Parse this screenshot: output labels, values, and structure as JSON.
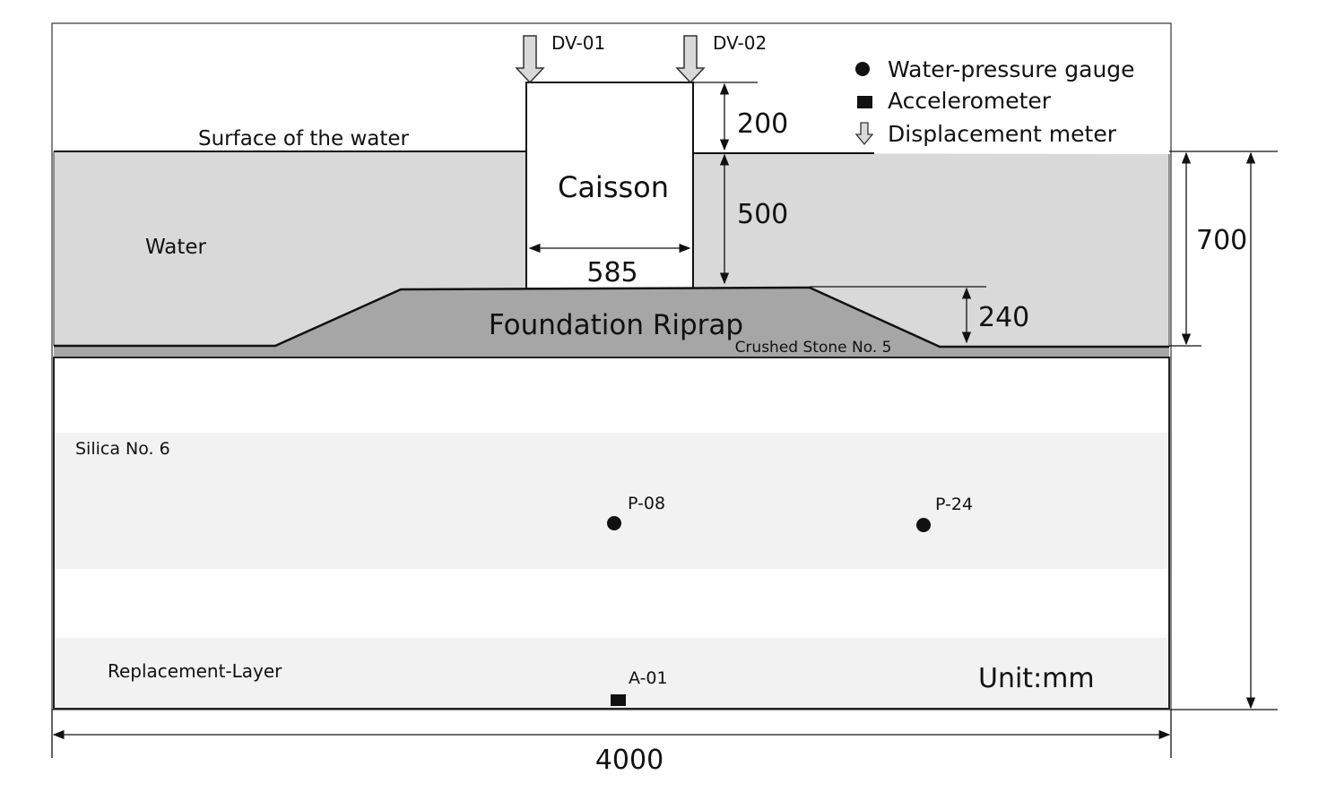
{
  "legend": {
    "water_pressure_gauge": "Water-pressure gauge",
    "accelerometer": "Accelerometer",
    "displacement_meter": "Displacement meter"
  },
  "labels": {
    "surface": "Surface of the water",
    "water": "Water",
    "caisson": "Caisson",
    "riprap": "Foundation Riprap",
    "crushed_stone": "Crushed Stone No. 5",
    "silica": "Silica No. 6",
    "replacement": "Replacement-Layer",
    "unit": "Unit:mm"
  },
  "sensors": {
    "dv01": "DV-01",
    "dv02": "DV-02",
    "p08": "P-08",
    "p24": "P-24",
    "a01": "A-01"
  },
  "dimensions": {
    "d200": "200",
    "d500": "500",
    "d585": "585",
    "d240": "240",
    "d700": "700",
    "d4000": "4000"
  },
  "colors": {
    "water": "#d9d9d9",
    "riprap": "#a6a6a6",
    "silica_band": "#f2f2f2"
  }
}
